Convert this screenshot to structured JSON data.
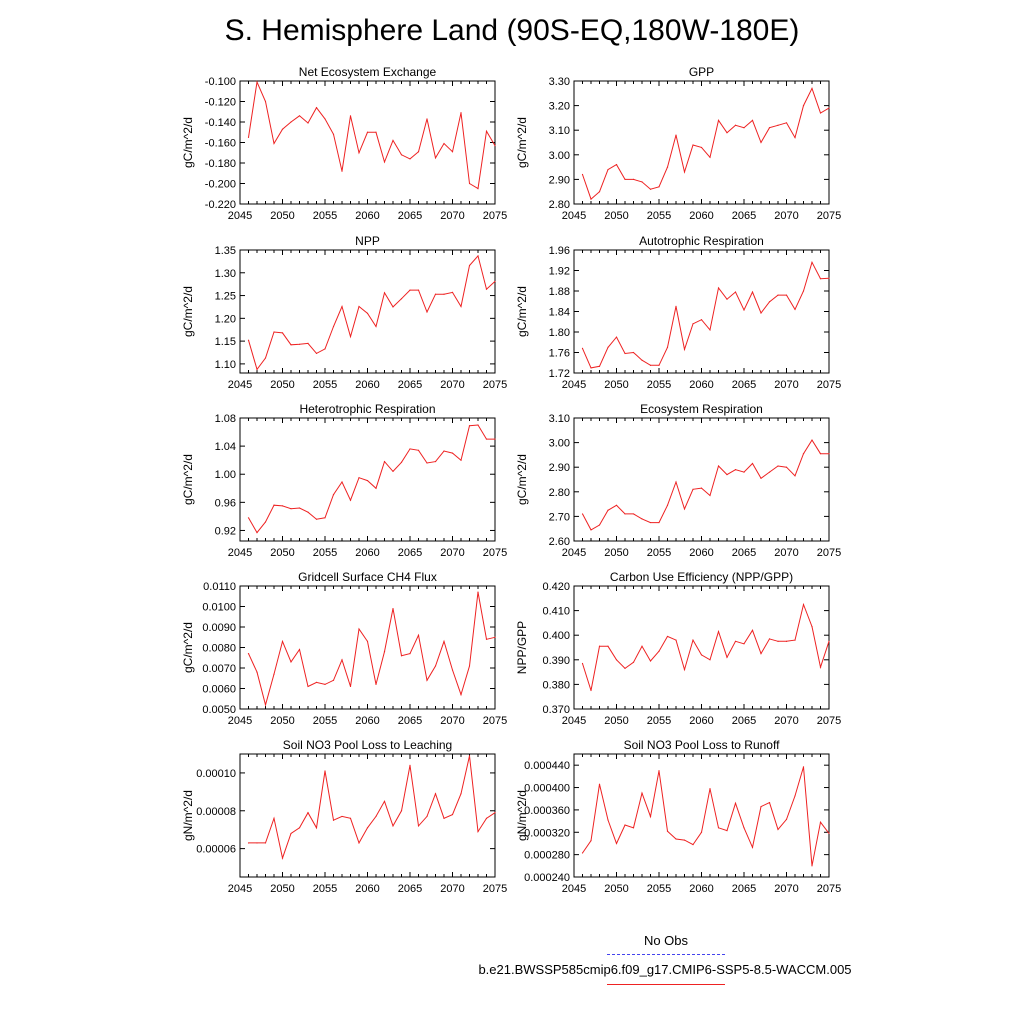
{
  "title": "S. Hemisphere Land (90S-EQ,180W-180E)",
  "legend": {
    "obs_label": "No Obs",
    "case_label": "b.e21.BWSSP585cmip6.f09_g17.CMIP6-SSP5-8.5-WACCM.005",
    "obs_color": "#4444ee",
    "case_color": "#ee2222"
  },
  "colors": {
    "line": "#ee2222",
    "axis": "#000000"
  },
  "chart_data": [
    {
      "type": "line",
      "title": "Net Ecosystem Exchange",
      "ylabel": "gC/m^2/d",
      "xlim": [
        2045,
        2075
      ],
      "ylim": [
        -0.22,
        -0.1
      ],
      "xticks": [
        "2045",
        "2050",
        "2055",
        "2060",
        "2065",
        "2070",
        "2075"
      ],
      "yticks": [
        "-0.100",
        "-0.120",
        "-0.140",
        "-0.160",
        "-0.180",
        "-0.200",
        "-0.220"
      ],
      "x": [
        2046,
        2047,
        2048,
        2049,
        2050,
        2051,
        2052,
        2053,
        2054,
        2055,
        2056,
        2057,
        2058,
        2059,
        2060,
        2061,
        2062,
        2063,
        2064,
        2065,
        2066,
        2067,
        2068,
        2069,
        2070,
        2071,
        2072,
        2073,
        2074,
        2075
      ],
      "values": [
        -0.155,
        -0.101,
        -0.12,
        -0.161,
        -0.147,
        -0.14,
        -0.134,
        -0.141,
        -0.126,
        -0.137,
        -0.152,
        -0.188,
        -0.134,
        -0.17,
        -0.15,
        -0.15,
        -0.179,
        -0.158,
        -0.172,
        -0.176,
        -0.169,
        -0.137,
        -0.175,
        -0.161,
        -0.169,
        -0.131,
        -0.2,
        -0.205,
        -0.149,
        -0.163
      ]
    },
    {
      "type": "line",
      "title": "GPP",
      "ylabel": "gC/m^2/d",
      "xlim": [
        2045,
        2075
      ],
      "ylim": [
        2.8,
        3.3
      ],
      "xticks": [
        "2045",
        "2050",
        "2055",
        "2060",
        "2065",
        "2070",
        "2075"
      ],
      "yticks": [
        "3.30",
        "3.20",
        "3.10",
        "3.00",
        "2.90",
        "2.80"
      ],
      "x": [
        2046,
        2047,
        2048,
        2049,
        2050,
        2051,
        2052,
        2053,
        2054,
        2055,
        2056,
        2057,
        2058,
        2059,
        2060,
        2061,
        2062,
        2063,
        2064,
        2065,
        2066,
        2067,
        2068,
        2069,
        2070,
        2071,
        2072,
        2073,
        2074,
        2075
      ],
      "values": [
        2.92,
        2.82,
        2.85,
        2.94,
        2.96,
        2.9,
        2.9,
        2.89,
        2.86,
        2.87,
        2.95,
        3.08,
        2.93,
        3.04,
        3.03,
        2.99,
        3.14,
        3.09,
        3.12,
        3.11,
        3.14,
        3.05,
        3.11,
        3.12,
        3.13,
        3.07,
        3.2,
        3.27,
        3.17,
        3.19
      ]
    },
    {
      "type": "line",
      "title": "NPP",
      "ylabel": "gC/m^2/d",
      "xlim": [
        2045,
        2075
      ],
      "ylim": [
        1.08,
        1.35
      ],
      "xticks": [
        "2045",
        "2050",
        "2055",
        "2060",
        "2065",
        "2070",
        "2075"
      ],
      "yticks": [
        "1.35",
        "1.30",
        "1.25",
        "1.20",
        "1.15",
        "1.10"
      ],
      "x": [
        2046,
        2047,
        2048,
        2049,
        2050,
        2051,
        2052,
        2053,
        2054,
        2055,
        2056,
        2057,
        2058,
        2059,
        2060,
        2061,
        2062,
        2063,
        2064,
        2065,
        2066,
        2067,
        2068,
        2069,
        2070,
        2071,
        2072,
        2073,
        2074,
        2075
      ],
      "values": [
        1.152,
        1.088,
        1.113,
        1.17,
        1.168,
        1.142,
        1.143,
        1.145,
        1.123,
        1.133,
        1.182,
        1.226,
        1.16,
        1.226,
        1.211,
        1.182,
        1.256,
        1.225,
        1.243,
        1.262,
        1.262,
        1.214,
        1.253,
        1.253,
        1.257,
        1.226,
        1.316,
        1.337,
        1.264,
        1.281
      ]
    },
    {
      "type": "line",
      "title": "Autotrophic Respiration",
      "ylabel": "gC/m^2/d",
      "xlim": [
        2045,
        2075
      ],
      "ylim": [
        1.72,
        1.96
      ],
      "xticks": [
        "2045",
        "2050",
        "2055",
        "2060",
        "2065",
        "2070",
        "2075"
      ],
      "yticks": [
        "1.96",
        "1.92",
        "1.88",
        "1.84",
        "1.80",
        "1.76",
        "1.72"
      ],
      "x": [
        2046,
        2047,
        2048,
        2049,
        2050,
        2051,
        2052,
        2053,
        2054,
        2055,
        2056,
        2057,
        2058,
        2059,
        2060,
        2061,
        2062,
        2063,
        2064,
        2065,
        2066,
        2067,
        2068,
        2069,
        2070,
        2071,
        2072,
        2073,
        2074,
        2075
      ],
      "values": [
        1.768,
        1.73,
        1.733,
        1.77,
        1.79,
        1.758,
        1.76,
        1.745,
        1.735,
        1.735,
        1.77,
        1.85,
        1.766,
        1.816,
        1.824,
        1.804,
        1.886,
        1.864,
        1.878,
        1.843,
        1.878,
        1.837,
        1.859,
        1.872,
        1.872,
        1.844,
        1.88,
        1.936,
        1.904,
        1.905
      ]
    },
    {
      "type": "line",
      "title": "Heterotrophic Respiration",
      "ylabel": "gC/m^2/d",
      "xlim": [
        2045,
        2075
      ],
      "ylim": [
        0.905,
        1.08
      ],
      "xticks": [
        "2045",
        "2050",
        "2055",
        "2060",
        "2065",
        "2070",
        "2075"
      ],
      "yticks": [
        "1.08",
        "1.04",
        "1.00",
        "0.96",
        "0.92"
      ],
      "x": [
        2046,
        2047,
        2048,
        2049,
        2050,
        2051,
        2052,
        2053,
        2054,
        2055,
        2056,
        2057,
        2058,
        2059,
        2060,
        2061,
        2062,
        2063,
        2064,
        2065,
        2066,
        2067,
        2068,
        2069,
        2070,
        2071,
        2072,
        2073,
        2074,
        2075
      ],
      "values": [
        0.938,
        0.917,
        0.932,
        0.956,
        0.955,
        0.951,
        0.952,
        0.946,
        0.936,
        0.938,
        0.971,
        0.989,
        0.963,
        0.995,
        0.991,
        0.98,
        1.018,
        1.004,
        1.017,
        1.036,
        1.034,
        1.016,
        1.018,
        1.033,
        1.03,
        1.02,
        1.069,
        1.07,
        1.05,
        1.05
      ]
    },
    {
      "type": "line",
      "title": "Ecosystem Respiration",
      "ylabel": "gC/m^2/d",
      "xlim": [
        2045,
        2075
      ],
      "ylim": [
        2.6,
        3.1
      ],
      "xticks": [
        "2045",
        "2050",
        "2055",
        "2060",
        "2065",
        "2070",
        "2075"
      ],
      "yticks": [
        "3.10",
        "3.00",
        "2.90",
        "2.80",
        "2.70",
        "2.60"
      ],
      "x": [
        2046,
        2047,
        2048,
        2049,
        2050,
        2051,
        2052,
        2053,
        2054,
        2055,
        2056,
        2057,
        2058,
        2059,
        2060,
        2061,
        2062,
        2063,
        2064,
        2065,
        2066,
        2067,
        2068,
        2069,
        2070,
        2071,
        2072,
        2073,
        2074,
        2075
      ],
      "values": [
        2.71,
        2.645,
        2.665,
        2.725,
        2.745,
        2.71,
        2.71,
        2.69,
        2.675,
        2.675,
        2.745,
        2.84,
        2.73,
        2.81,
        2.815,
        2.785,
        2.905,
        2.87,
        2.89,
        2.88,
        2.915,
        2.855,
        2.88,
        2.905,
        2.9,
        2.865,
        2.955,
        3.01,
        2.955,
        2.955
      ]
    },
    {
      "type": "line",
      "title": "Gridcell Surface CH4 Flux",
      "ylabel": "gC/m^2/d",
      "xlim": [
        2045,
        2075
      ],
      "ylim": [
        0.005,
        0.011
      ],
      "xticks": [
        "2045",
        "2050",
        "2055",
        "2060",
        "2065",
        "2070",
        "2075"
      ],
      "yticks": [
        "0.0110",
        "0.0100",
        "0.0090",
        "0.0080",
        "0.0070",
        "0.0060",
        "0.0050"
      ],
      "x": [
        2046,
        2047,
        2048,
        2049,
        2050,
        2051,
        2052,
        2053,
        2054,
        2055,
        2056,
        2057,
        2058,
        2059,
        2060,
        2061,
        2062,
        2063,
        2064,
        2065,
        2066,
        2067,
        2068,
        2069,
        2070,
        2071,
        2072,
        2073,
        2074,
        2075
      ],
      "values": [
        0.0077,
        0.0068,
        0.0052,
        0.0067,
        0.0083,
        0.0073,
        0.0079,
        0.0061,
        0.0063,
        0.0062,
        0.0064,
        0.0074,
        0.0061,
        0.0089,
        0.0083,
        0.0062,
        0.0078,
        0.0099,
        0.0076,
        0.0077,
        0.0086,
        0.0064,
        0.0071,
        0.0083,
        0.0069,
        0.0057,
        0.0071,
        0.0107,
        0.0084,
        0.0085
      ]
    },
    {
      "type": "line",
      "title": "Carbon Use Efficiency (NPP/GPP)",
      "ylabel": "NPP/GPP",
      "xlim": [
        2045,
        2075
      ],
      "ylim": [
        0.37,
        0.42
      ],
      "xticks": [
        "2045",
        "2050",
        "2055",
        "2060",
        "2065",
        "2070",
        "2075"
      ],
      "yticks": [
        "0.420",
        "0.410",
        "0.400",
        "0.390",
        "0.380",
        "0.370"
      ],
      "x": [
        2046,
        2047,
        2048,
        2049,
        2050,
        2051,
        2052,
        2053,
        2054,
        2055,
        2056,
        2057,
        2058,
        2059,
        2060,
        2061,
        2062,
        2063,
        2064,
        2065,
        2066,
        2067,
        2068,
        2069,
        2070,
        2071,
        2072,
        2073,
        2074,
        2075
      ],
      "values": [
        0.3885,
        0.3775,
        0.3955,
        0.3955,
        0.39,
        0.3865,
        0.389,
        0.3955,
        0.3895,
        0.3935,
        0.3995,
        0.398,
        0.386,
        0.398,
        0.392,
        0.39,
        0.4015,
        0.391,
        0.3975,
        0.3965,
        0.402,
        0.3925,
        0.3985,
        0.3975,
        0.3975,
        0.398,
        0.4125,
        0.4035,
        0.387,
        0.3975
      ]
    },
    {
      "type": "line",
      "title": "Soil NO3 Pool Loss to Leaching",
      "ylabel": "gN/m^2/d",
      "xlim": [
        2045,
        2075
      ],
      "ylim": [
        4.5e-05,
        0.00011
      ],
      "xticks": [
        "2045",
        "2050",
        "2055",
        "2060",
        "2065",
        "2070",
        "2075"
      ],
      "yticks": [
        "0.00010",
        "0.00008",
        "0.00006"
      ],
      "x": [
        2046,
        2047,
        2048,
        2049,
        2050,
        2051,
        2052,
        2053,
        2054,
        2055,
        2056,
        2057,
        2058,
        2059,
        2060,
        2061,
        2062,
        2063,
        2064,
        2065,
        2066,
        2067,
        2068,
        2069,
        2070,
        2071,
        2072,
        2073,
        2074,
        2075
      ],
      "values": [
        6.3e-05,
        6.3e-05,
        6.3e-05,
        7.6e-05,
        5.5e-05,
        6.8e-05,
        7.1e-05,
        7.9e-05,
        7.1e-05,
        0.000101,
        7.5e-05,
        7.7e-05,
        7.6e-05,
        6.3e-05,
        7.1e-05,
        7.7e-05,
        8.5e-05,
        7.2e-05,
        8e-05,
        0.000104,
        7.2e-05,
        7.7e-05,
        8.9e-05,
        7.6e-05,
        7.8e-05,
        8.9e-05,
        0.000109,
        6.9e-05,
        7.6e-05,
        7.9e-05
      ]
    },
    {
      "type": "line",
      "title": "Soil NO3 Pool Loss to Runoff",
      "ylabel": "gN/m^2/d",
      "xlim": [
        2045,
        2075
      ],
      "ylim": [
        0.00024,
        0.00046
      ],
      "xticks": [
        "2045",
        "2050",
        "2055",
        "2060",
        "2065",
        "2070",
        "2075"
      ],
      "yticks": [
        "0.000440",
        "0.000400",
        "0.000360",
        "0.000320",
        "0.000280",
        "0.000240"
      ],
      "x": [
        2046,
        2047,
        2048,
        2049,
        2050,
        2051,
        2052,
        2053,
        2054,
        2055,
        2056,
        2057,
        2058,
        2059,
        2060,
        2061,
        2062,
        2063,
        2064,
        2065,
        2066,
        2067,
        2068,
        2069,
        2070,
        2071,
        2072,
        2073,
        2074,
        2075
      ],
      "values": [
        0.000283,
        0.000305,
        0.000406,
        0.000342,
        0.0003,
        0.000333,
        0.000328,
        0.00039,
        0.000348,
        0.00043,
        0.000322,
        0.000308,
        0.000306,
        0.000298,
        0.00032,
        0.000398,
        0.000328,
        0.000323,
        0.000372,
        0.000328,
        0.000293,
        0.000366,
        0.000373,
        0.000325,
        0.000343,
        0.000385,
        0.000437,
        0.00026,
        0.000338,
        0.000318
      ]
    }
  ]
}
